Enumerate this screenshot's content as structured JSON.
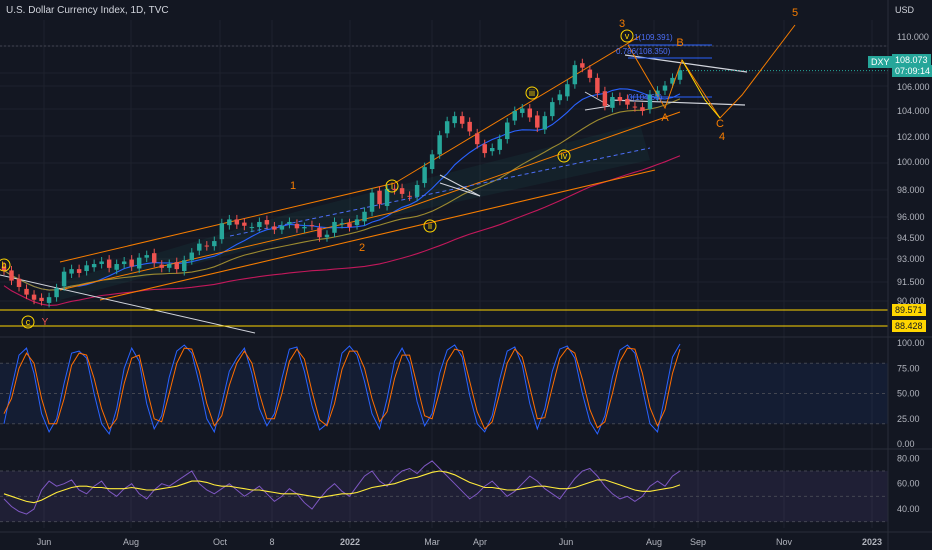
{
  "header": {
    "title": "U.S. Dollar Currency Index, 1D, TVC",
    "currency": "USD"
  },
  "price_tags": {
    "symbol": "DXY",
    "last": "108.073",
    "countdown": "07:09:14",
    "level_a": "89.571",
    "level_b": "88.428"
  },
  "colors": {
    "background": "#131722",
    "up": "#26a69a",
    "down": "#ef5350",
    "wave": "#f57c00",
    "wave_label": "#ffd600",
    "stoch_k": "#2962ff",
    "stoch_d": "#ff6d00",
    "rsi": "#7e57c2",
    "rsi_ma": "#ffeb3b",
    "level_line": "#ffd600"
  },
  "chart_data": [
    {
      "type": "candlestick",
      "title": "U.S. Dollar Currency Index, 1D, TVC",
      "y_axis": {
        "ticks": [
          "110.000",
          "108.000",
          "106.000",
          "104.000",
          "102.000",
          "100.000",
          "98.000",
          "96.000",
          "94.500",
          "93.000",
          "91.500",
          "90.000"
        ],
        "range": [
          88,
          112
        ]
      },
      "x_axis": {
        "ticks": [
          "Jun",
          "Aug",
          "Oct",
          "8",
          "2022",
          "Mar",
          "Apr",
          "Jun",
          "Aug",
          "Sep",
          "Nov",
          "2023"
        ]
      },
      "last_price": 108.073,
      "horizontal_levels": [
        89.571,
        88.428
      ],
      "fib_labels": [
        "1(109.391)",
        "0.786(108.350)",
        "0(104.63)"
      ],
      "wave_labels_orange": [
        "1",
        "2",
        "3",
        "4",
        "5",
        "A",
        "B",
        "C"
      ],
      "wave_labels_circled": [
        "i",
        "ii",
        "iii",
        "iv",
        "v",
        "c",
        "b"
      ],
      "wave_labels_red": [
        "Y"
      ],
      "closes": [
        92.4,
        91.6,
        91.1,
        90.5,
        90.1,
        90.0,
        90.3,
        91.0,
        92.3,
        92.5,
        92.2,
        92.8,
        92.9,
        93.1,
        92.6,
        92.9,
        93.1,
        92.7,
        93.4,
        93.6,
        93.0,
        92.6,
        92.9,
        92.5,
        93.2,
        93.8,
        94.5,
        94.3,
        94.7,
        96.1,
        96.4,
        96.0,
        95.9,
        95.8,
        96.2,
        96.0,
        95.6,
        95.9,
        96.2,
        95.7,
        95.8,
        95.9,
        95.0,
        95.2,
        96.2,
        96.1,
        95.8,
        96.4,
        97.0,
        98.5,
        97.6,
        98.8,
        98.7,
        98.4,
        98.2,
        99.1,
        100.5,
        101.5,
        103.0,
        104.1,
        104.5,
        103.9,
        103.3,
        102.3,
        101.6,
        102.0,
        102.7,
        104.0,
        104.9,
        105.1,
        104.4,
        103.6,
        104.5,
        105.6,
        106.2,
        107.0,
        108.5,
        108.3,
        107.5,
        106.3,
        105.3,
        106.0,
        105.7,
        105.4,
        105.2,
        104.9,
        106.2,
        106.5,
        106.9,
        107.5,
        108.1
      ]
    },
    {
      "type": "line",
      "name": "Stochastic",
      "y_axis": {
        "ticks": [
          "100.00",
          "75.00",
          "50.00",
          "25.00",
          "0.00"
        ],
        "range": [
          0,
          100
        ]
      },
      "bands": [
        80,
        20
      ],
      "series": [
        {
          "values": [
            20,
            55,
            88,
            95,
            70,
            30,
            12,
            25,
            60,
            90,
            92,
            85,
            50,
            20,
            10,
            35,
            75,
            95,
            82,
            40,
            15,
            28,
            66,
            92,
            98,
            90,
            60,
            25,
            12,
            40,
            72,
            85,
            95,
            70,
            35,
            18,
            30,
            65,
            94,
            96,
            72,
            38,
            14,
            20,
            55,
            90,
            97,
            88,
            62,
            30,
            15,
            45,
            82,
            95,
            80,
            42,
            18,
            30,
            70,
            93,
            98,
            86,
            48,
            20,
            12,
            28,
            64,
            92,
            96,
            78,
            40,
            15,
            35,
            72,
            94,
            97,
            85,
            50,
            22,
            10,
            28,
            66,
            93,
            98,
            90,
            55,
            20,
            12,
            48,
            86,
            99
          ]
        },
        {
          "values": [
            30,
            45,
            75,
            90,
            80,
            45,
            20,
            20,
            45,
            78,
            90,
            88,
            65,
            35,
            15,
            25,
            60,
            85,
            88,
            55,
            25,
            22,
            50,
            80,
            95,
            94,
            72,
            40,
            18,
            28,
            58,
            80,
            92,
            80,
            50,
            25,
            25,
            50,
            82,
            94,
            84,
            52,
            24,
            18,
            40,
            74,
            92,
            92,
            75,
            45,
            22,
            32,
            65,
            88,
            88,
            58,
            28,
            25,
            52,
            82,
            94,
            92,
            62,
            32,
            15,
            22,
            50,
            80,
            94,
            86,
            56,
            25,
            26,
            56,
            85,
            95,
            90,
            64,
            34,
            16,
            22,
            50,
            82,
            95,
            94,
            70,
            36,
            18,
            34,
            70,
            94
          ]
        }
      ]
    },
    {
      "type": "line",
      "name": "RSI",
      "y_axis": {
        "ticks": [
          "80.00",
          "60.00",
          "40.00"
        ],
        "range": [
          25,
          85
        ]
      },
      "bands": [
        70,
        30
      ],
      "series": [
        {
          "values": [
            48,
            42,
            38,
            36,
            40,
            55,
            62,
            58,
            60,
            63,
            55,
            52,
            58,
            62,
            54,
            50,
            56,
            60,
            52,
            48,
            55,
            60,
            58,
            62,
            66,
            70,
            60,
            55,
            52,
            56,
            60,
            55,
            50,
            54,
            58,
            52,
            46,
            50,
            56,
            52,
            45,
            40,
            48,
            55,
            60,
            54,
            50,
            58,
            66,
            70,
            62,
            58,
            65,
            70,
            72,
            68,
            74,
            78,
            72,
            66,
            60,
            54,
            48,
            52,
            58,
            62,
            56,
            50,
            54,
            60,
            66,
            62,
            56,
            52,
            48,
            56,
            64,
            70,
            72,
            66,
            58,
            52,
            48,
            50,
            46,
            50,
            58,
            62,
            58,
            66,
            70
          ]
        },
        {
          "values": [
            52,
            50,
            48,
            46,
            45,
            47,
            50,
            53,
            55,
            57,
            58,
            58,
            57,
            57,
            56,
            56,
            56,
            57,
            56,
            55,
            55,
            56,
            57,
            58,
            60,
            62,
            62,
            61,
            59,
            58,
            58,
            57,
            56,
            55,
            55,
            54,
            53,
            52,
            52,
            52,
            51,
            50,
            49,
            50,
            51,
            52,
            52,
            53,
            55,
            57,
            58,
            59,
            60,
            62,
            64,
            65,
            67,
            69,
            70,
            69,
            67,
            64,
            61,
            59,
            57,
            57,
            56,
            55,
            55,
            56,
            57,
            58,
            58,
            57,
            56,
            56,
            57,
            59,
            61,
            63,
            63,
            61,
            59,
            57,
            55,
            54,
            54,
            55,
            56,
            57,
            59
          ]
        }
      ]
    }
  ]
}
